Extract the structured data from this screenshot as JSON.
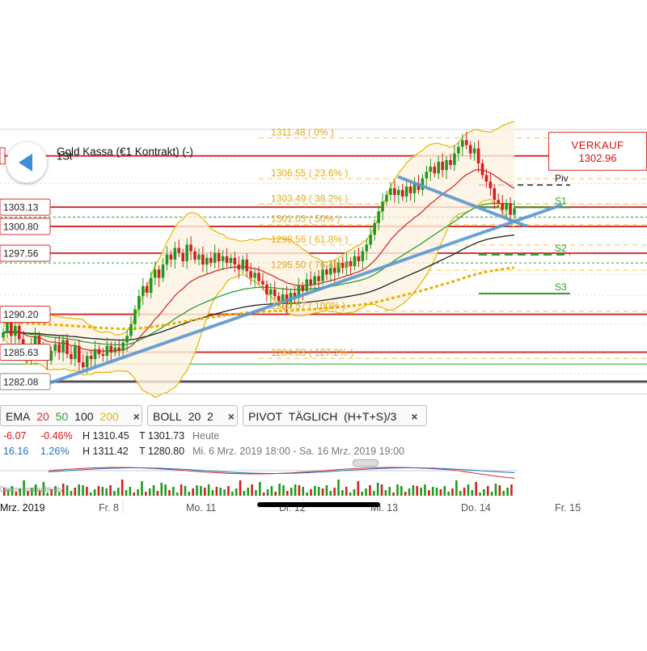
{
  "instrument": {
    "name": "Gold Kassa (€1 Kontrakt) (-)",
    "timeframe": "1St"
  },
  "verkauf": {
    "label": "VERKAUF",
    "price": "1302.96"
  },
  "price_labels": [
    {
      "text": "1303.13",
      "price": 1303.13,
      "color": "#d32f2f"
    },
    {
      "text": "1300.80",
      "price": 1300.8,
      "color": "#d32f2f"
    },
    {
      "text": "1297.56",
      "price": 1297.56,
      "color": "#d32f2f"
    },
    {
      "text": "1290.20",
      "price": 1290.2,
      "color": "#d32f2f"
    },
    {
      "text": "1285.63",
      "price": 1285.63,
      "color": "#d32f2f"
    },
    {
      "text": "1282.08",
      "price": 1282.08,
      "color": "#555555"
    }
  ],
  "fib_labels": [
    {
      "text": "1311.48 ( 0% )",
      "price": 1311.48
    },
    {
      "text": "1306.55 ( 23.6% )",
      "price": 1306.55
    },
    {
      "text": "1303.49 ( 38.2% )",
      "price": 1303.49
    },
    {
      "text": "1301.03 ( 50% )",
      "price": 1301.03
    },
    {
      "text": "1298.56 ( 61.8% )",
      "price": 1298.56
    },
    {
      "text": "1295.50 ( 76.4% )",
      "price": 1295.5
    },
    {
      "text": "1290.57 ( 100% )",
      "price": 1290.57
    },
    {
      "text": "1284.88 ( 127.2% )",
      "price": 1284.88
    }
  ],
  "pivot_labels": [
    {
      "text": "Piv",
      "price": 1305.8,
      "color": "#222222"
    },
    {
      "text": "S1",
      "price": 1303.1,
      "color": "#2e9e2e"
    },
    {
      "text": "S2",
      "price": 1297.4,
      "color": "#2e9e2e"
    },
    {
      "text": "S3",
      "price": 1292.7,
      "color": "#2e9e2e"
    }
  ],
  "indicators": {
    "ema": {
      "name": "EMA",
      "periods": [
        "20",
        "50",
        "100",
        "200"
      ],
      "colors": [
        "#d32f2f",
        "#2e9e2e",
        "#222222",
        "#e6b400"
      ]
    },
    "boll": {
      "name": "BOLL",
      "params": "20  2"
    },
    "pivot": {
      "name": "PIVOT",
      "params": "TÄGLICH  (H+T+S)/3"
    },
    "close": "×"
  },
  "stats": {
    "row1": {
      "change": "-6.07",
      "pct": "-0.46%",
      "high": "H 1310.45",
      "low": "T 1301.73",
      "period": "Heute"
    },
    "row2": {
      "change": "16.16",
      "pct": "1.26%",
      "high": "H 1311.42",
      "low": "T 1280.80",
      "period": "Mi. 6 Mrz. 2019 18:00 - Sa. 16 Mrz. 2019 19:00"
    }
  },
  "no_data_note": "Daten sind indikativ",
  "x_axis": [
    "Mrz. 2019",
    "Fr. 8",
    "Mo. 11",
    "Di. 12",
    "Mi. 13",
    "Do. 14",
    "Fr. 15"
  ],
  "chart_data": {
    "type": "candlestick",
    "ylim": [
      1280.8,
      1312.5
    ],
    "y_tick_labels": [
      "1303.13",
      "1300.80",
      "1297.56",
      "1290.20",
      "1285.63",
      "1282.08"
    ],
    "x_tick_labels": [
      "Mrz. 2019",
      "Fr. 8",
      "Mo. 11",
      "Di. 12",
      "Mi. 13",
      "Do. 14",
      "Fr. 15"
    ],
    "ohlc_close": [
      1288.0,
      1289.2,
      1287.6,
      1288.8,
      1287.2,
      1286.0,
      1285.2,
      1286.6,
      1287.6,
      1286.1,
      1285.6,
      1284.6,
      1285.8,
      1286.6,
      1285.6,
      1287.1,
      1285.4,
      1284.8,
      1286.4,
      1284.4,
      1283.8,
      1285.2,
      1284.8,
      1286.0,
      1285.4,
      1285.2,
      1286.4,
      1285.6,
      1286.2,
      1285.8,
      1286.8,
      1287.6,
      1289.0,
      1290.8,
      1292.4,
      1293.6,
      1292.8,
      1294.6,
      1295.6,
      1294.6,
      1296.2,
      1297.4,
      1296.8,
      1298.2,
      1297.6,
      1296.6,
      1298.6,
      1297.8,
      1296.8,
      1297.4,
      1296.2,
      1297.0,
      1296.4,
      1297.6,
      1296.6,
      1297.2,
      1296.4,
      1297.0,
      1296.2,
      1295.6,
      1296.8,
      1295.4,
      1294.6,
      1295.2,
      1294.2,
      1293.8,
      1292.6,
      1293.2,
      1292.4,
      1291.8,
      1292.6,
      1291.4,
      1292.8,
      1292.2,
      1293.6,
      1293.0,
      1294.4,
      1293.8,
      1294.8,
      1294.2,
      1295.6,
      1295.0,
      1295.8,
      1295.2,
      1296.4,
      1295.8,
      1296.6,
      1296.0,
      1297.2,
      1296.6,
      1297.8,
      1298.6,
      1299.8,
      1301.2,
      1302.6,
      1303.8,
      1304.6,
      1305.4,
      1304.6,
      1305.2,
      1304.4,
      1305.6,
      1304.8,
      1306.0,
      1305.2,
      1306.6,
      1307.4,
      1308.0,
      1307.2,
      1308.6,
      1307.6,
      1308.8,
      1308.2,
      1309.6,
      1310.4,
      1311.2,
      1310.6,
      1309.6,
      1310.2,
      1308.4,
      1307.0,
      1306.2,
      1305.4,
      1304.0,
      1303.6,
      1302.8,
      1303.6,
      1302.2,
      1302.96
    ],
    "pivot_levels": {
      "Piv": 1305.8,
      "S1": 1303.1,
      "S2": 1297.4,
      "S3": 1292.7
    },
    "ema_periods": [
      20,
      50,
      100,
      200
    ],
    "bollinger": {
      "period": 20,
      "stddev": 2
    }
  }
}
